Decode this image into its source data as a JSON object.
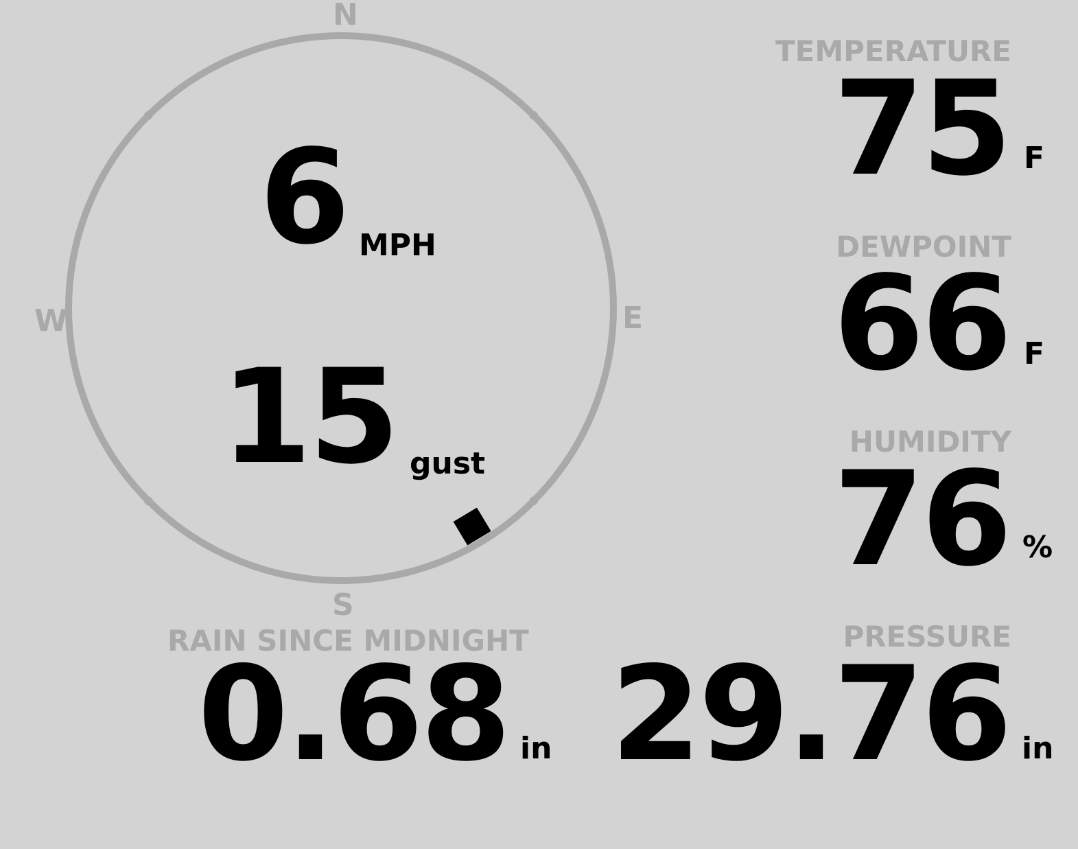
{
  "wind": {
    "speed": "6",
    "speed_unit": "MPH",
    "gust": "15",
    "gust_unit": "gust",
    "direction_degrees": 149,
    "compass": {
      "n": "N",
      "e": "E",
      "s": "S",
      "w": "W"
    }
  },
  "temperature": {
    "label": "TEMPERATURE",
    "value": "75",
    "unit": "F"
  },
  "dewpoint": {
    "label": "DEWPOINT",
    "value": "66",
    "unit": "F"
  },
  "humidity": {
    "label": "HUMIDITY",
    "value": "76",
    "unit": "%"
  },
  "rain": {
    "label": "RAIN SINCE MIDNIGHT",
    "value": "0.68",
    "unit": "in"
  },
  "pressure": {
    "label": "PRESSURE",
    "value": "29.76",
    "unit": "in"
  },
  "colors": {
    "background": "#d3d3d3",
    "muted": "#a9a9a9",
    "text": "#000000"
  }
}
